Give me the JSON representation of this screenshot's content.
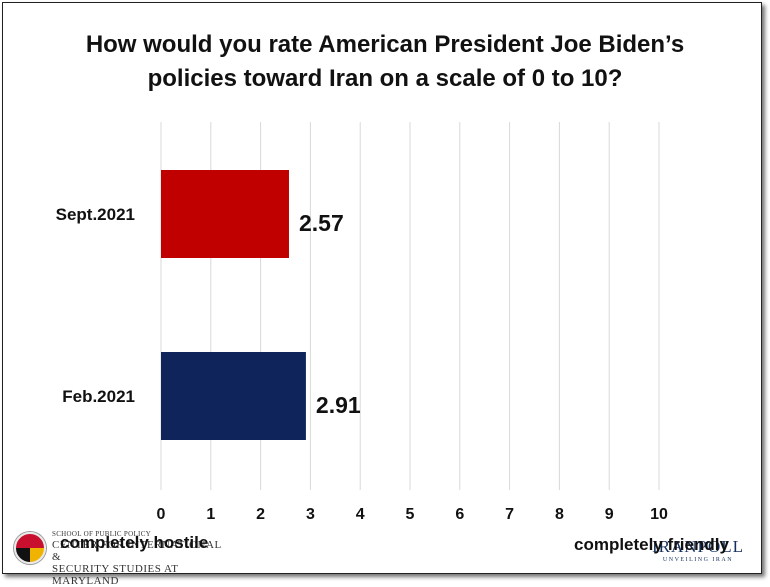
{
  "chart_data": {
    "type": "bar",
    "orientation": "horizontal",
    "title": "How would you rate American President Joe Biden’s policies toward Iran on a scale of 0 to 10?",
    "title_lines": [
      "How would you rate American President Joe Biden’s",
      "policies toward Iran on a scale of 0 to 10?"
    ],
    "categories": [
      "Sept.2021",
      "Feb.2021"
    ],
    "values": [
      2.57,
      2.91
    ],
    "value_labels": [
      "2.57",
      "2.91"
    ],
    "bar_colors": [
      "#c00000",
      "#10245c"
    ],
    "xlim": [
      0,
      10
    ],
    "x_ticks": [
      "0",
      "1",
      "2",
      "3",
      "4",
      "5",
      "6",
      "7",
      "8",
      "9",
      "10"
    ],
    "grid": "vertical",
    "low_end_label": "completely hostile",
    "high_end_label": "completely friendly"
  },
  "logos": {
    "left": {
      "line1": "SCHOOL OF PUBLIC POLICY",
      "line2": "CENTER FOR INTERNATIONAL &",
      "line3": "SECURITY STUDIES AT MARYLAND"
    },
    "right": {
      "name": "IRANPOLL",
      "tagline": "UNVEILING IRAN"
    }
  }
}
